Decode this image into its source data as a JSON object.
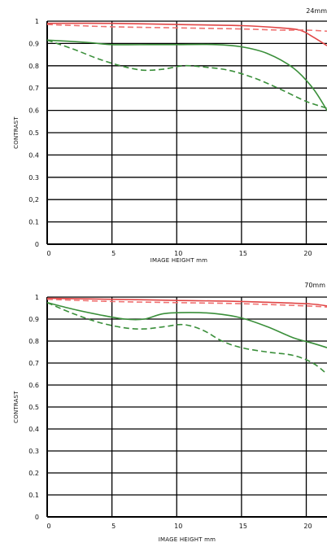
{
  "chart_data": [
    {
      "type": "line",
      "focal_label": "24mm",
      "xlabel": "IMAGE HEIGHT   mm",
      "ylabel": "CONTRAST",
      "xlim": [
        0,
        21.6
      ],
      "ylim": [
        0,
        1
      ],
      "x_ticks": [
        0,
        5,
        10,
        15,
        20
      ],
      "y_ticks": [
        0,
        0.1,
        0.2,
        0.3,
        0.4,
        0.5,
        0.6,
        0.7,
        0.8,
        0.9,
        1
      ],
      "x_tick_labels": [
        "0",
        "5",
        "10",
        "15",
        "20"
      ],
      "y_tick_labels": [
        "0",
        "0.1",
        "0,2",
        "0.3",
        "0.4",
        "0.5",
        "0.6",
        "0.7",
        "0.8",
        "0.9",
        "1"
      ],
      "grid": true,
      "series": [
        {
          "color": "#e04646",
          "dash": false,
          "x": [
            0,
            5,
            10,
            15,
            18,
            19.5,
            20.5,
            21.6
          ],
          "y": [
            0.99,
            0.99,
            0.985,
            0.98,
            0.97,
            0.96,
            0.93,
            0.89
          ]
        },
        {
          "color": "#f07070",
          "dash": true,
          "x": [
            0,
            5,
            10,
            15,
            18,
            20,
            21.6
          ],
          "y": [
            0.985,
            0.975,
            0.97,
            0.965,
            0.96,
            0.96,
            0.955
          ]
        },
        {
          "color": "#3a8f3a",
          "dash": false,
          "x": [
            0,
            3,
            5,
            8,
            10,
            13,
            15,
            17,
            19,
            20.5,
            21.6
          ],
          "y": [
            0.915,
            0.905,
            0.895,
            0.895,
            0.895,
            0.895,
            0.885,
            0.855,
            0.79,
            0.7,
            0.6
          ]
        },
        {
          "color": "#3a8f3a",
          "dash": true,
          "x": [
            0,
            2,
            4,
            6,
            7.5,
            9,
            10.5,
            12,
            14,
            16,
            18,
            20,
            21.6
          ],
          "y": [
            0.915,
            0.875,
            0.83,
            0.795,
            0.78,
            0.785,
            0.8,
            0.795,
            0.78,
            0.745,
            0.695,
            0.64,
            0.61
          ]
        }
      ]
    },
    {
      "type": "line",
      "focal_label": "70mm",
      "xlabel": "IMAGE HEIGHT   mm",
      "ylabel": "CONTRAST",
      "xlim": [
        0,
        21.6
      ],
      "ylim": [
        0,
        1
      ],
      "x_ticks": [
        0,
        5,
        10,
        15,
        20
      ],
      "y_ticks": [
        0,
        0.1,
        0.2,
        0.3,
        0.4,
        0.5,
        0.6,
        0.7,
        0.8,
        0.9,
        1
      ],
      "x_tick_labels": [
        "0",
        "5",
        "10",
        "15",
        "20"
      ],
      "y_tick_labels": [
        "0",
        "0.1",
        "0.2",
        "0.3",
        "0.4",
        "0.5",
        "0.6",
        "0.7",
        "0.8",
        "0.9",
        "1"
      ],
      "grid": true,
      "series": [
        {
          "color": "#e04646",
          "dash": false,
          "x": [
            0,
            5,
            10,
            15,
            20,
            21.6
          ],
          "y": [
            0.995,
            0.99,
            0.985,
            0.98,
            0.97,
            0.96
          ]
        },
        {
          "color": "#f07070",
          "dash": true,
          "x": [
            0,
            5,
            10,
            15,
            20,
            21.6
          ],
          "y": [
            0.99,
            0.98,
            0.975,
            0.97,
            0.96,
            0.955
          ]
        },
        {
          "color": "#3a8f3a",
          "dash": false,
          "x": [
            0,
            2,
            4,
            6,
            7.5,
            9,
            11,
            13,
            15,
            17,
            19,
            20.5,
            21.6
          ],
          "y": [
            0.975,
            0.945,
            0.92,
            0.9,
            0.9,
            0.925,
            0.93,
            0.925,
            0.905,
            0.865,
            0.815,
            0.79,
            0.77
          ]
        },
        {
          "color": "#3a8f3a",
          "dash": true,
          "x": [
            0,
            2,
            4,
            6,
            7.5,
            9,
            10.5,
            12,
            13.5,
            15,
            17,
            19,
            20.5,
            21.6
          ],
          "y": [
            0.975,
            0.925,
            0.885,
            0.86,
            0.855,
            0.865,
            0.875,
            0.85,
            0.8,
            0.77,
            0.75,
            0.735,
            0.7,
            0.65
          ]
        }
      ]
    }
  ]
}
